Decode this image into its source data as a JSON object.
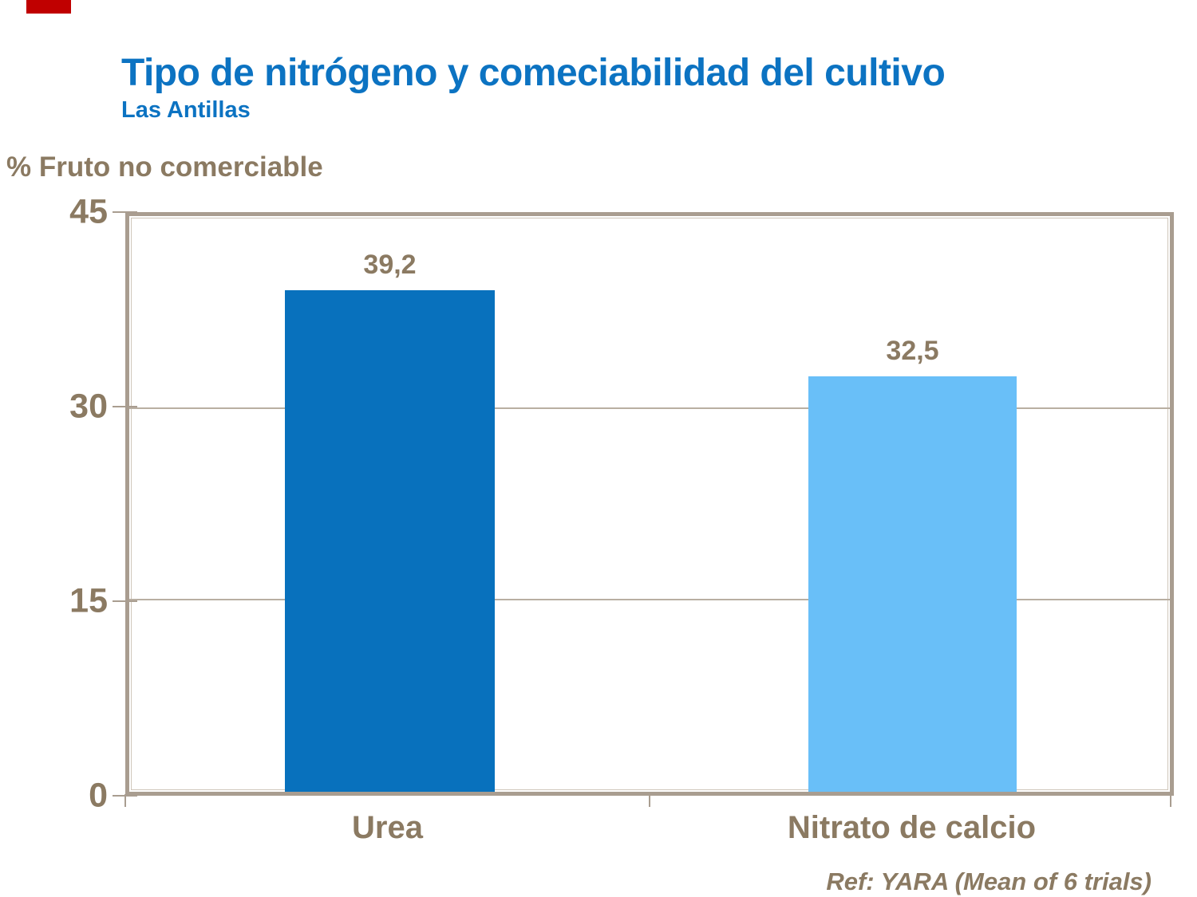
{
  "header": {
    "title": "Tipo de nitrógeno y comeciabilidad del cultivo",
    "subtitle": "Las Antillas"
  },
  "chart_data": {
    "type": "bar",
    "title": "Tipo de nitrógeno y comeciabilidad del cultivo",
    "subtitle": "Las Antillas",
    "ylabel": "% Fruto no comerciable",
    "xlabel": "",
    "categories": [
      "Urea",
      "Nitrato de calcio"
    ],
    "values": [
      39.2,
      32.5
    ],
    "value_labels": [
      "39,2",
      "32,5"
    ],
    "bar_colors": [
      "#0871BD",
      "#69BFF8"
    ],
    "ylim": [
      0,
      45
    ],
    "yticks": [
      0,
      15,
      30,
      45
    ],
    "ytick_labels": [
      "0",
      "15",
      "30",
      "45"
    ],
    "grid": "horizontal gridlines at 15 and 30",
    "legend": "none"
  },
  "footer": {
    "ref": "Ref: YARA (Mean of 6 trials)"
  },
  "colors": {
    "accent_red": "#C00000",
    "title_blue": "#0C73C2",
    "text_brown": "#8B7A62",
    "frame_tan": "#A99D90",
    "gridline_tan": "#B9AFA2",
    "bar_dark_blue": "#0871BD",
    "bar_light_blue": "#69BFF8"
  }
}
